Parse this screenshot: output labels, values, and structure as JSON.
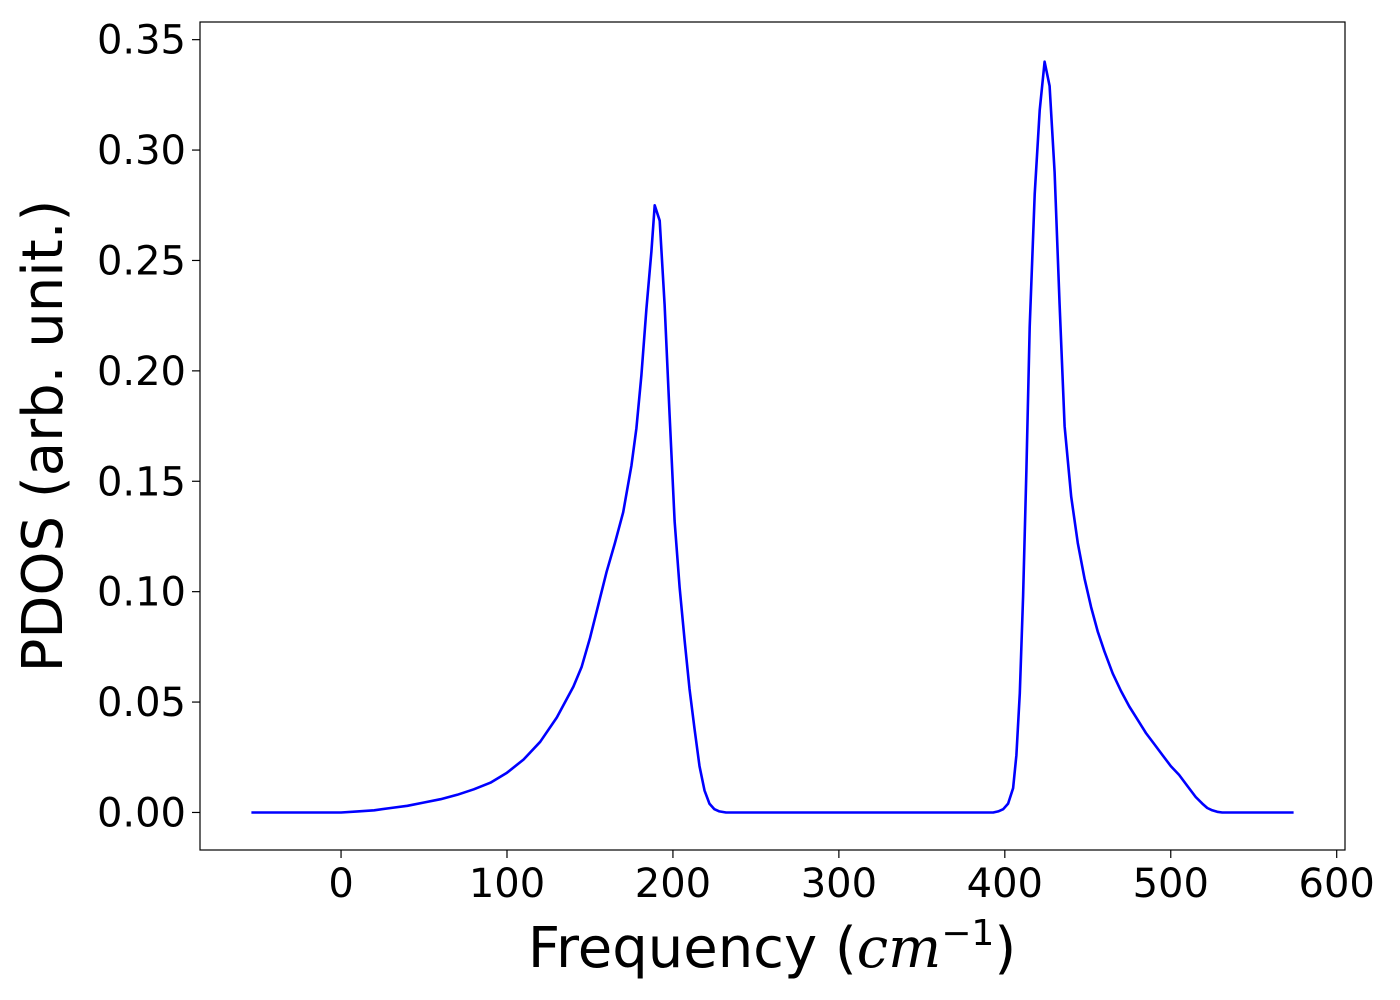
{
  "chart_data": {
    "type": "line",
    "title": "",
    "xlabel": {
      "main": "Frequency (",
      "var": "cm",
      "sup": "−1",
      "end": ")"
    },
    "ylabel": "PDOS (arb. unit.)",
    "xlim": [
      -85,
      605
    ],
    "ylim": [
      -0.017,
      0.358
    ],
    "xticks": [
      0,
      100,
      200,
      300,
      400,
      500,
      600
    ],
    "xtick_labels": [
      "0",
      "100",
      "200",
      "300",
      "400",
      "500",
      "600"
    ],
    "yticks": [
      0.0,
      0.05,
      0.1,
      0.15,
      0.2,
      0.25,
      0.3,
      0.35
    ],
    "ytick_labels": [
      "0.00",
      "0.05",
      "0.10",
      "0.15",
      "0.20",
      "0.25",
      "0.30",
      "0.35"
    ],
    "grid": false,
    "legend": "none",
    "series": [
      {
        "color": "#0000ff",
        "x": [
          -54,
          -20,
          0,
          10,
          20,
          30,
          40,
          50,
          60,
          70,
          80,
          90,
          100,
          110,
          120,
          130,
          140,
          145,
          150,
          155,
          160,
          165,
          170,
          175,
          178,
          181,
          184,
          187,
          189,
          192,
          195,
          198,
          201,
          204,
          207,
          210,
          213,
          216,
          219,
          222,
          225,
          228,
          232,
          240,
          300,
          380,
          393,
          396,
          399,
          402,
          405,
          407,
          409,
          411,
          413,
          415,
          418,
          421,
          424,
          427,
          430,
          433,
          436,
          440,
          444,
          448,
          452,
          456,
          460,
          465,
          470,
          475,
          480,
          485,
          490,
          495,
          500,
          505,
          510,
          515,
          519,
          522,
          525,
          528,
          531,
          535,
          545,
          574
        ],
        "y": [
          0.0,
          0.0,
          0.0,
          0.0005,
          0.001,
          0.002,
          0.003,
          0.0045,
          0.006,
          0.008,
          0.0105,
          0.0135,
          0.018,
          0.024,
          0.032,
          0.043,
          0.057,
          0.066,
          0.079,
          0.094,
          0.109,
          0.122,
          0.136,
          0.157,
          0.174,
          0.198,
          0.228,
          0.254,
          0.275,
          0.268,
          0.23,
          0.18,
          0.132,
          0.102,
          0.078,
          0.056,
          0.038,
          0.021,
          0.01,
          0.004,
          0.0015,
          0.0005,
          0.0,
          0.0,
          0.0,
          0.0,
          0.0,
          0.0005,
          0.0015,
          0.004,
          0.011,
          0.026,
          0.054,
          0.098,
          0.155,
          0.22,
          0.28,
          0.318,
          0.34,
          0.329,
          0.29,
          0.23,
          0.175,
          0.143,
          0.122,
          0.106,
          0.093,
          0.082,
          0.073,
          0.063,
          0.055,
          0.048,
          0.042,
          0.036,
          0.031,
          0.026,
          0.021,
          0.017,
          0.012,
          0.007,
          0.004,
          0.002,
          0.001,
          0.0003,
          0.0,
          0.0,
          0.0,
          0.0
        ]
      }
    ]
  }
}
